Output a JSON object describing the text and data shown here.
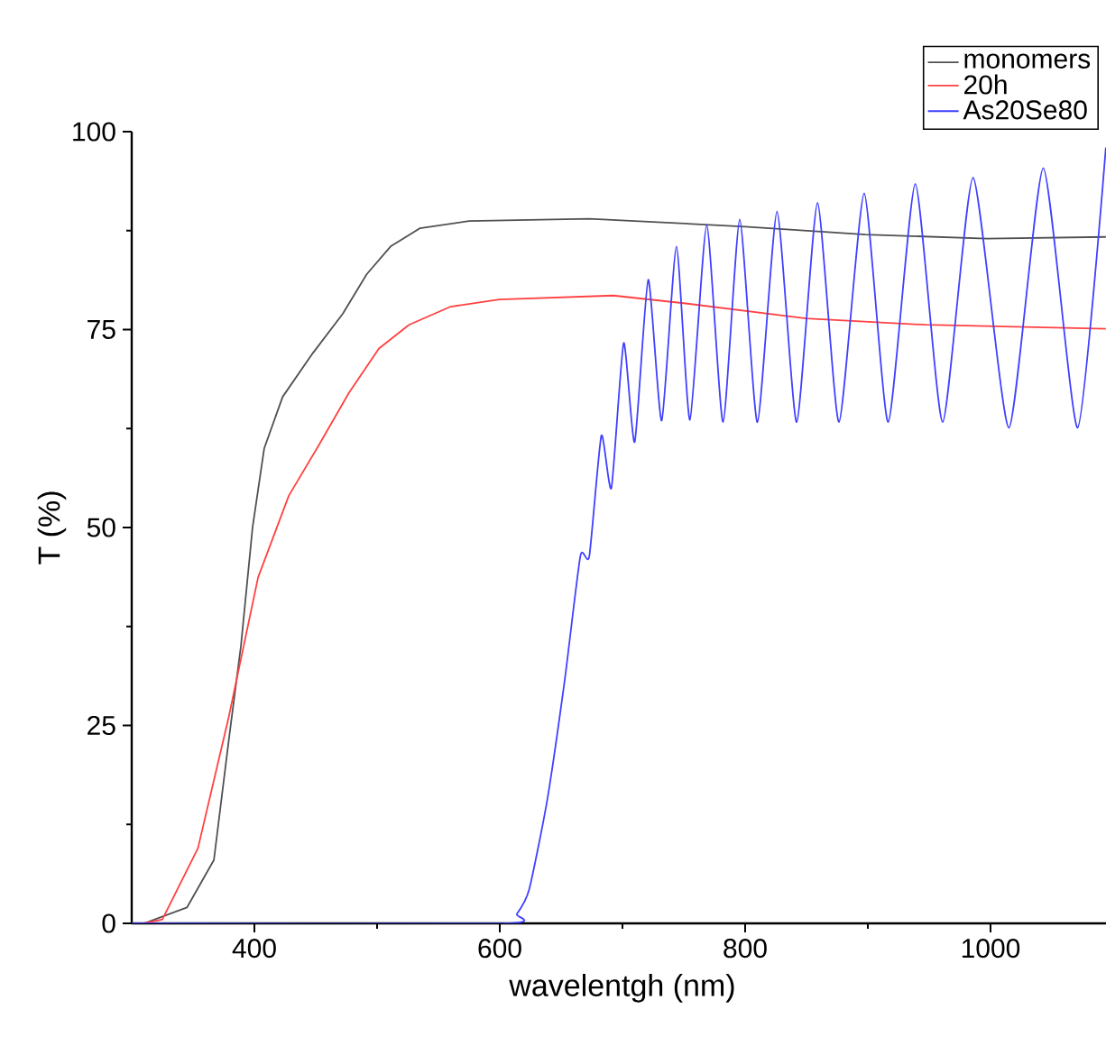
{
  "chart_data": {
    "type": "line",
    "xlabel": "wavelentgh (nm)",
    "ylabel": "T (%)",
    "xlim": [
      300,
      1100
    ],
    "xticks": [
      400,
      600,
      800,
      1000
    ],
    "ylim": [
      0,
      100
    ],
    "yticks": [
      0,
      25,
      50,
      75,
      100
    ],
    "legend": "top right",
    "series": [
      {
        "name": "monomers",
        "color": "#505050",
        "x": [
          310,
          345,
          367,
          379,
          389,
          398.5,
          408,
          423,
          447.5,
          472,
          491.6,
          511,
          535,
          575,
          673,
          800,
          898,
          997,
          1094
        ],
        "values": [
          0,
          2,
          8,
          23,
          35,
          50,
          60,
          66.5,
          72,
          77,
          82,
          85.5,
          87.8,
          88.7,
          89,
          88,
          87,
          86.5,
          86.7
        ]
      },
      {
        "name": "20h",
        "color": "#ff4040",
        "x": [
          310,
          325,
          354,
          379,
          403,
          428,
          452.5,
          477,
          501.5,
          526,
          560,
          599.5,
          692.6,
          751.5,
          849.5,
          947,
          1094
        ],
        "values": [
          0,
          0.5,
          9.5,
          26,
          43.7,
          54,
          60.4,
          67,
          72.6,
          75.6,
          77.9,
          78.8,
          79.3,
          78.3,
          76.4,
          75.6,
          75.1
        ]
      },
      {
        "name": "As20Se80",
        "color": "#4040ff",
        "x": [
          300,
          604,
          614,
          624,
          638.7,
          653,
          665.7,
          673,
          682.8,
          691,
          701,
          710,
          721,
          732,
          744,
          755,
          768.7,
          782,
          795.6,
          810,
          826,
          842,
          859,
          876.5,
          897,
          916.6,
          938.7,
          961,
          985.8,
          1015,
          1043,
          1071,
          1094
        ],
        "values": [
          0,
          0,
          1.2,
          4.3,
          15.6,
          30.8,
          46.4,
          46.4,
          61.6,
          55,
          73.3,
          60.8,
          81.3,
          63.5,
          85.5,
          63.6,
          88.2,
          63.3,
          88.9,
          63.3,
          89.9,
          63.3,
          91,
          63.3,
          92.2,
          63.3,
          93.4,
          63.3,
          94.2,
          62.6,
          95.4,
          62.6,
          98
        ]
      }
    ]
  }
}
